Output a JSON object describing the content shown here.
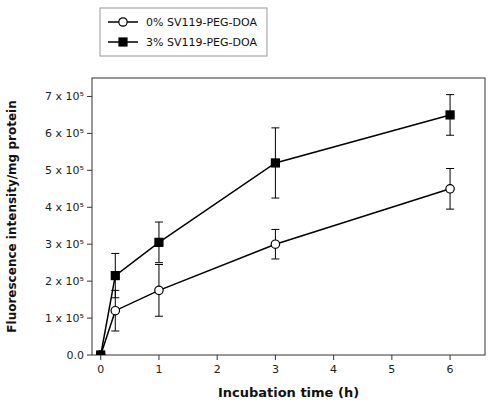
{
  "chart_data": {
    "type": "line",
    "xlabel": "Incubation time (h)",
    "ylabel": "Fluorescence intensity/mg protein",
    "x": [
      0,
      0.25,
      1,
      3,
      6
    ],
    "xlim": [
      -0.15,
      6.6
    ],
    "ylim": [
      0,
      750000
    ],
    "xticks": [
      0,
      1,
      2,
      3,
      4,
      5,
      6
    ],
    "yticks": [
      {
        "value": 0,
        "label": "0.0"
      },
      {
        "value": 100000,
        "label": "1 x 10⁵"
      },
      {
        "value": 200000,
        "label": "2 x 10⁵"
      },
      {
        "value": 300000,
        "label": "3 x 10⁵"
      },
      {
        "value": 400000,
        "label": "4 x 10⁵"
      },
      {
        "value": 500000,
        "label": "5 x 10⁵"
      },
      {
        "value": 600000,
        "label": "6 x 10⁵"
      },
      {
        "value": 700000,
        "label": "7 x 10⁵"
      }
    ],
    "series": [
      {
        "name": "0% SV119-PEG-DOA",
        "color": "black",
        "marker": "open-circle",
        "values": [
          0,
          120000,
          175000,
          300000,
          450000
        ],
        "errors": [
          0,
          55000,
          70000,
          40000,
          55000
        ]
      },
      {
        "name": "3% SV119-PEG-DOA",
        "color": "black",
        "marker": "square",
        "values": [
          0,
          215000,
          305000,
          520000,
          650000
        ],
        "errors": [
          0,
          60000,
          55000,
          95000,
          55000
        ]
      }
    ],
    "grid": false,
    "legend": "top"
  }
}
